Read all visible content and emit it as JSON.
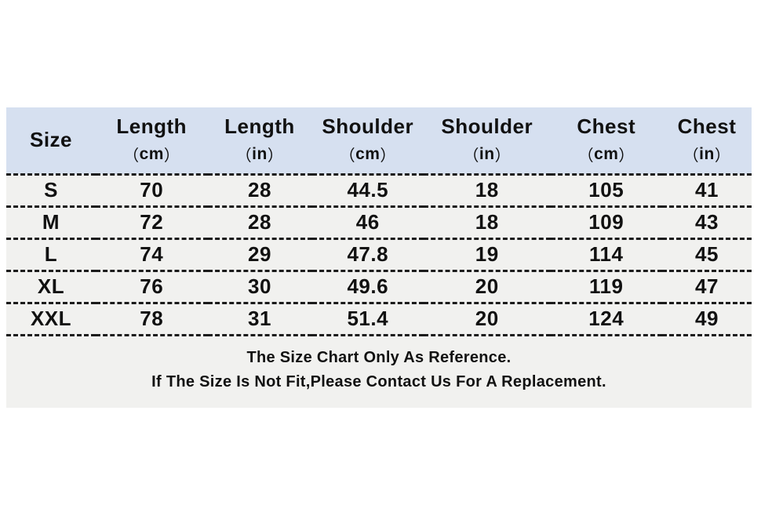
{
  "colors": {
    "header_bg": "#d6e0f0",
    "row_bg": "#f1f1ef",
    "divider": "#1b1b1b",
    "text": "#111111"
  },
  "chart_data": {
    "type": "table",
    "title": "",
    "paren_open": "（",
    "paren_close": "）",
    "columns": [
      {
        "label": "Size",
        "unit": ""
      },
      {
        "label": "Length",
        "unit": "cm"
      },
      {
        "label": "Length",
        "unit": "in"
      },
      {
        "label": "Shoulder",
        "unit": "cm"
      },
      {
        "label": "Shoulder",
        "unit": "in"
      },
      {
        "label": "Chest",
        "unit": "cm"
      },
      {
        "label": "Chest",
        "unit": "in"
      }
    ],
    "rows": [
      [
        "S",
        "70",
        "28",
        "44.5",
        "18",
        "105",
        "41"
      ],
      [
        "M",
        "72",
        "28",
        "46",
        "18",
        "109",
        "43"
      ],
      [
        "L",
        "74",
        "29",
        "47.8",
        "19",
        "114",
        "45"
      ],
      [
        "XL",
        "76",
        "30",
        "49.6",
        "20",
        "119",
        "47"
      ],
      [
        "XXL",
        "78",
        "31",
        "51.4",
        "20",
        "124",
        "49"
      ]
    ],
    "notes": [
      "The Size Chart Only As Reference.",
      "If The Size Is Not Fit,Please Contact Us For A Replacement."
    ],
    "layout_hints": {
      "header_row": "solid light-blue background",
      "body_rows": "light-grey background separated by black dashed lines",
      "alignment": "all cells centered"
    }
  }
}
